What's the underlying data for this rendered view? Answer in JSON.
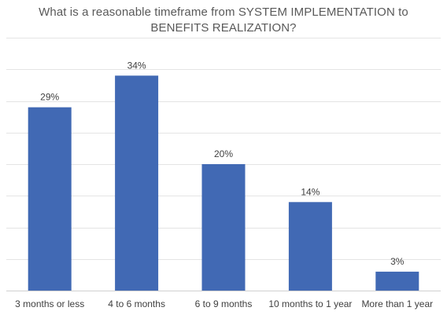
{
  "chart_data": {
    "type": "bar",
    "title_lines": [
      "What is a reasonable timeframe from SYSTEM IMPLEMENTATION to",
      "BENEFITS REALIZATION?"
    ],
    "categories": [
      "3 months or less",
      "4 to 6 months",
      "6 to 9 months",
      "10 months to 1 year",
      "More than 1 year"
    ],
    "values": [
      29,
      34,
      20,
      14,
      3
    ],
    "data_labels": [
      "29%",
      "34%",
      "20%",
      "14%",
      "3%"
    ],
    "ylim": [
      0,
      40
    ],
    "y_gridline_step": 5,
    "grid": true,
    "legend": "none",
    "bar_color": "#4169B4",
    "grid_color": "#E4E4E4",
    "axis_color": "#D0D0D0",
    "label_color": "#404040"
  }
}
